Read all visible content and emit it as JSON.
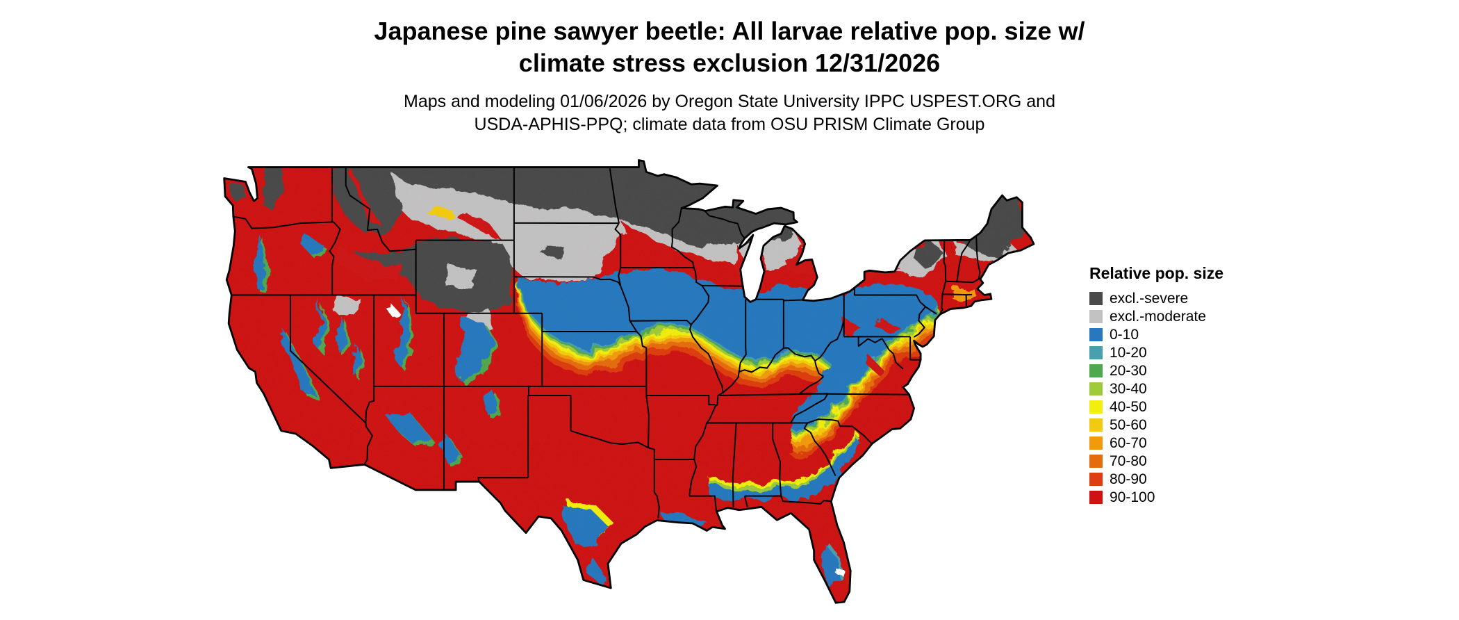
{
  "header": {
    "title_line1": "Japanese pine sawyer beetle: All larvae relative pop. size w/",
    "title_line2": "climate stress exclusion 12/31/2026",
    "subtitle_line1": "Maps and modeling 01/06/2026 by Oregon State University IPPC USPEST.ORG and",
    "subtitle_line2": "USDA-APHIS-PPQ; climate data from OSU PRISM Climate Group"
  },
  "legend": {
    "title": "Relative pop. size",
    "items": [
      {
        "label": "excl.-severe",
        "color": "#4a4a4a"
      },
      {
        "label": "excl.-moderate",
        "color": "#c3c2c2"
      },
      {
        "label": "0-10",
        "color": "#2778be"
      },
      {
        "label": "10-20",
        "color": "#4a9fae"
      },
      {
        "label": "20-30",
        "color": "#4fa84e"
      },
      {
        "label": "30-40",
        "color": "#9fca3a"
      },
      {
        "label": "40-50",
        "color": "#f2ee0e"
      },
      {
        "label": "50-60",
        "color": "#f3cb0e"
      },
      {
        "label": "60-70",
        "color": "#f29a0b"
      },
      {
        "label": "70-80",
        "color": "#e56c0a"
      },
      {
        "label": "80-90",
        "color": "#dd3d10"
      },
      {
        "label": "90-100",
        "color": "#ce1312"
      }
    ]
  }
}
